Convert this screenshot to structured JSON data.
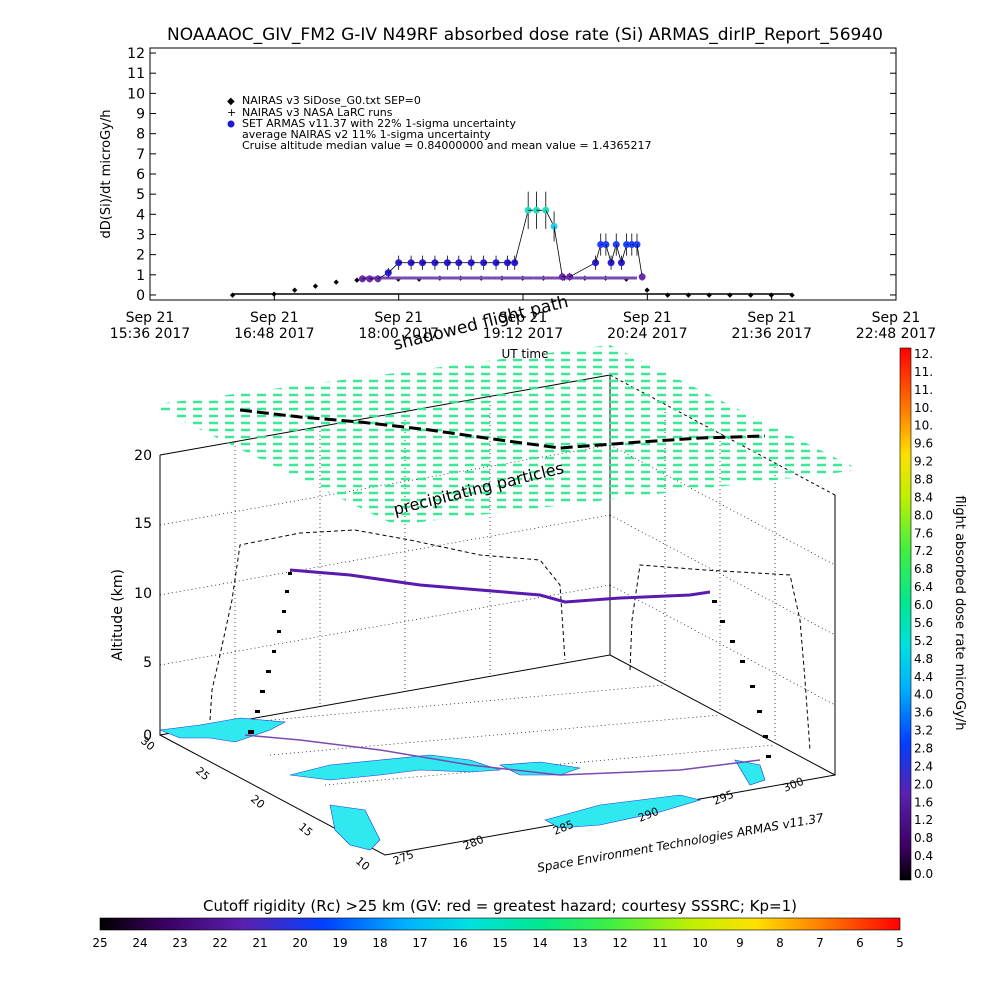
{
  "title": "NOAAAOC_GIV_FM2 G-IV   N49RF  absorbed dose rate (Si) ARMAS_dirIP_Report_56940",
  "chart_data": [
    {
      "type": "scatter",
      "ylabel": "dD(Si)/dt microGy/h",
      "xlabel": "UT time",
      "ylim": [
        0,
        12
      ],
      "yticks": [
        "0",
        "1",
        "2",
        "3",
        "4",
        "5",
        "6",
        "7",
        "8",
        "9",
        "10",
        "11",
        "12"
      ],
      "x_range_hours": [
        15.6,
        22.8
      ],
      "xticks": [
        {
          "h": 15.6,
          "line1": "Sep 21",
          "line2": "15:36 2017"
        },
        {
          "h": 16.8,
          "line1": "Sep 21",
          "line2": "16:48 2017"
        },
        {
          "h": 18.0,
          "line1": "Sep 21",
          "line2": "18:00 2017"
        },
        {
          "h": 19.2,
          "line1": "Sep 21",
          "line2": "19:12 2017"
        },
        {
          "h": 20.4,
          "line1": "Sep 21",
          "line2": "20:24 2017"
        },
        {
          "h": 21.6,
          "line1": "Sep 21",
          "line2": "21:36 2017"
        },
        {
          "h": 22.8,
          "line1": "Sep 21",
          "line2": "22:48 2017"
        }
      ],
      "legend": [
        "NAIRAS v3 SiDose_G0.txt SEP=0",
        "NAIRAS v3 NASA LaRC runs",
        "SET ARMAS v11.37 with 22% 1-sigma uncertainty",
        "average NAIRAS v2 11% 1-sigma uncertainty",
        "Cruise altitude median value = 0.84000000 and mean value = 1.4365217"
      ],
      "series": [
        {
          "name": "NAIRAS v3 SiDose_G0.txt SEP=0",
          "x": [
            16.4,
            16.8,
            17.0,
            17.2,
            17.4,
            17.6,
            17.8,
            18.0,
            18.2,
            18.4,
            18.6,
            18.8,
            19.0,
            19.2,
            19.4,
            19.6,
            19.8,
            20.0,
            20.2,
            20.4,
            20.6,
            20.8,
            21.0,
            21.2,
            21.4,
            21.6,
            21.8
          ],
          "y": [
            0.05,
            0.1,
            0.3,
            0.5,
            0.7,
            0.8,
            0.85,
            0.85,
            0.85,
            0.9,
            0.9,
            0.9,
            0.9,
            0.9,
            0.9,
            0.9,
            0.9,
            0.9,
            0.85,
            0.3,
            0.05,
            0.05,
            0.05,
            0.05,
            0.05,
            0.05,
            0.05
          ]
        },
        {
          "name": "SET ARMAS v11.37 with 22% 1-sigma uncertainty",
          "x": [
            17.65,
            17.72,
            17.8,
            17.9,
            18.0,
            18.12,
            18.23,
            18.35,
            18.47,
            18.58,
            18.7,
            18.82,
            18.94,
            19.05,
            19.12,
            19.25,
            19.33,
            19.42,
            19.5,
            19.58,
            19.65,
            19.9,
            19.95,
            20.0,
            20.05,
            20.1,
            20.15,
            20.2,
            20.25,
            20.3,
            20.35
          ],
          "y": [
            0.8,
            0.8,
            0.8,
            1.1,
            1.6,
            1.6,
            1.6,
            1.6,
            1.6,
            1.6,
            1.6,
            1.6,
            1.6,
            1.6,
            1.6,
            4.2,
            4.2,
            4.2,
            3.4,
            0.9,
            0.9,
            1.6,
            2.5,
            2.5,
            1.6,
            2.5,
            1.6,
            2.5,
            2.5,
            2.5,
            0.9
          ],
          "errors_pct": 22
        },
        {
          "name": "Cruise altitude median value",
          "x": [
            17.65,
            18.9,
            19.3,
            19.5,
            19.7,
            20.3
          ],
          "y": [
            0.84,
            0.84,
            0.84,
            0.84,
            0.84,
            0.84
          ]
        }
      ]
    },
    {
      "type": "3d-trajectory",
      "zlabel": "Altitude (km)",
      "zticks": [
        "0",
        "5",
        "10",
        "15",
        "20"
      ],
      "yticks": [
        "10",
        "15",
        "20",
        "25",
        "30"
      ],
      "xticks": [
        "275",
        "280",
        "285",
        "290",
        "295",
        "300"
      ],
      "annotations": [
        "precipitating particles",
        "shadowed flight path",
        "Space Environment Technologies ARMAS v11.37"
      ],
      "right_colorbar": {
        "label": "flight absorbed dose rate microGy/h",
        "ticks": [
          "12.",
          "11.",
          "11.",
          "10.",
          "10.",
          "9.6",
          "9.2",
          "8.8",
          "8.4",
          "8.0",
          "7.6",
          "7.2",
          "6.8",
          "6.4",
          "6.0",
          "5.6",
          "5.2",
          "4.8",
          "4.4",
          "4.0",
          "3.6",
          "3.2",
          "2.8",
          "2.4",
          "2.0",
          "1.6",
          "1.2",
          "0.8",
          "0.4",
          "0.0"
        ]
      },
      "bottom_colorbar": {
        "label": "Cutoff rigidity (Rc) >25 km (GV: red = greatest hazard; courtesy SSSRC; Kp=1)",
        "ticks": [
          "25",
          "24",
          "23",
          "22",
          "21",
          "20",
          "19",
          "18",
          "17",
          "16",
          "15",
          "14",
          "13",
          "12",
          "11",
          "10",
          "9",
          "8",
          "7",
          "6",
          "5"
        ]
      }
    }
  ],
  "colors": {
    "armas": "#1a1ad8",
    "cyan": "#20e0e8",
    "green": "#30e890",
    "black": "#000000"
  }
}
